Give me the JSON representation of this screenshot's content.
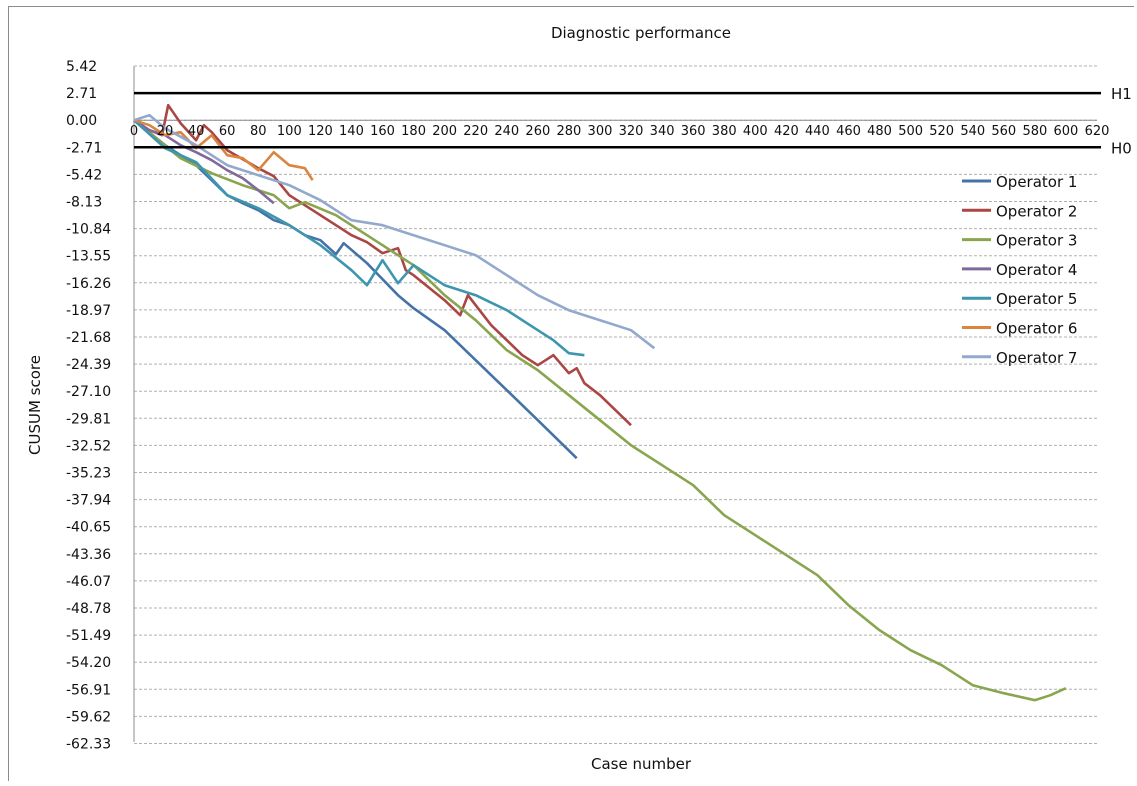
{
  "chart_data": {
    "type": "line",
    "title": "Diagnostic performance",
    "xlabel": "Case number",
    "ylabel": "CUSUM score",
    "xlim": [
      0,
      620
    ],
    "ylim": [
      -63.5,
      5.42
    ],
    "x_ticks": [
      "0",
      "20",
      "40",
      "60",
      "80",
      "100",
      "120",
      "140",
      "160",
      "180",
      "200",
      "220",
      "240",
      "260",
      "280",
      "300",
      "320",
      "340",
      "360",
      "380",
      "400",
      "420",
      "440",
      "460",
      "480",
      "500",
      "520",
      "540",
      "560",
      "580",
      "600",
      "620"
    ],
    "y_ticks": [
      "5.42",
      "2.71",
      "0.00",
      "-2.71",
      "-5.42",
      "-8.13",
      "-10.84",
      "-13.55",
      "-16.26",
      "-18.97",
      "-21.68",
      "-24.39",
      "-27.10",
      "-29.81",
      "-32.52",
      "-35.23",
      "-37.94",
      "-40.65",
      "-43.36",
      "-46.07",
      "-48.78",
      "-51.49",
      "-54.20",
      "-56.91",
      "-59.62",
      "-62.33"
    ],
    "grid": "horizontal dashed",
    "legend_position": "right",
    "reference_lines": [
      {
        "label": "H1",
        "value": 2.71
      },
      {
        "label": "H0",
        "value": -2.71
      }
    ],
    "series": [
      {
        "name": "Operator 1",
        "color": "#4572a7",
        "x": [
          0,
          20,
          40,
          60,
          70,
          80,
          90,
          100,
          110,
          120,
          130,
          135,
          150,
          170,
          180,
          200,
          220,
          240,
          260,
          285
        ],
        "y": [
          0,
          -2.5,
          -4.5,
          -7.5,
          -8.3,
          -9,
          -10,
          -10.5,
          -11.5,
          -12,
          -13.4,
          -12.3,
          -14.3,
          -17.5,
          -18.8,
          -21,
          -24,
          -27,
          -30,
          -33.8
        ]
      },
      {
        "name": "Operator 2",
        "color": "#aa4643",
        "x": [
          0,
          10,
          18,
          22,
          30,
          40,
          45,
          50,
          60,
          80,
          90,
          100,
          120,
          140,
          150,
          160,
          170,
          175,
          180,
          200,
          210,
          215,
          230,
          240,
          250,
          260,
          270,
          280,
          285,
          290,
          300,
          320
        ],
        "y": [
          0,
          -1,
          -1.5,
          1.5,
          -0.3,
          -2,
          -0.5,
          -1.2,
          -3,
          -4.8,
          -5.6,
          -7.5,
          -9.5,
          -11.5,
          -12.2,
          -13.3,
          -12.8,
          -15,
          -15.5,
          -18,
          -19.5,
          -17.5,
          -20.5,
          -22,
          -23.5,
          -24.5,
          -23.5,
          -25.3,
          -24.8,
          -26.3,
          -27.5,
          -30.5
        ]
      },
      {
        "name": "Operator 3",
        "color": "#89a54e",
        "x": [
          0,
          30,
          50,
          70,
          90,
          100,
          110,
          130,
          150,
          170,
          180,
          200,
          220,
          240,
          260,
          280,
          300,
          320,
          340,
          360,
          380,
          400,
          420,
          440,
          460,
          480,
          500,
          520,
          540,
          560,
          580,
          590,
          600
        ],
        "y": [
          0,
          -3.8,
          -5.3,
          -6.5,
          -7.5,
          -8.8,
          -8.2,
          -9.5,
          -11.5,
          -13.5,
          -14.5,
          -17.5,
          -20,
          -23,
          -25,
          -27.5,
          -30,
          -32.5,
          -34.5,
          -36.5,
          -39.5,
          -41.5,
          -43.5,
          -45.5,
          -48.5,
          -51,
          -53,
          -54.5,
          -56.5,
          -57.3,
          -58,
          -57.5,
          -56.8
        ]
      },
      {
        "name": "Operator 4",
        "color": "#80699b",
        "x": [
          0,
          10,
          20,
          30,
          40,
          50,
          60,
          70,
          80,
          90
        ],
        "y": [
          0,
          -1,
          -1.5,
          -2.5,
          -3.2,
          -4,
          -5,
          -5.8,
          -7,
          -8.3
        ]
      },
      {
        "name": "Operator 5",
        "color": "#3d96ae",
        "x": [
          0,
          20,
          40,
          60,
          80,
          100,
          120,
          140,
          150,
          160,
          170,
          180,
          200,
          220,
          240,
          260,
          270,
          280,
          290
        ],
        "y": [
          0,
          -2.8,
          -4.2,
          -7.5,
          -8.8,
          -10.5,
          -12.5,
          -15,
          -16.5,
          -14,
          -16.3,
          -14.5,
          -16.5,
          -17.5,
          -19,
          -21,
          -22,
          -23.3,
          -23.5
        ]
      },
      {
        "name": "Operator 6",
        "color": "#db843d",
        "x": [
          0,
          10,
          20,
          30,
          40,
          50,
          60,
          70,
          80,
          90,
          100,
          110,
          115
        ],
        "y": [
          0,
          -0.5,
          -1.5,
          -1.2,
          -2.8,
          -1.5,
          -3.5,
          -3.8,
          -5,
          -3.2,
          -4.5,
          -4.8,
          -6
        ]
      },
      {
        "name": "Operator 7",
        "color": "#92a8cd",
        "x": [
          0,
          10,
          20,
          40,
          60,
          80,
          100,
          120,
          140,
          160,
          180,
          200,
          220,
          240,
          260,
          280,
          300,
          310,
          320,
          335
        ],
        "y": [
          0,
          0.5,
          -0.8,
          -2.5,
          -4.5,
          -5.5,
          -6.5,
          -8,
          -10,
          -10.5,
          -11.5,
          -12.5,
          -13.5,
          -15.5,
          -17.5,
          -19,
          -20,
          -20.5,
          -21,
          -22.8
        ]
      }
    ]
  }
}
